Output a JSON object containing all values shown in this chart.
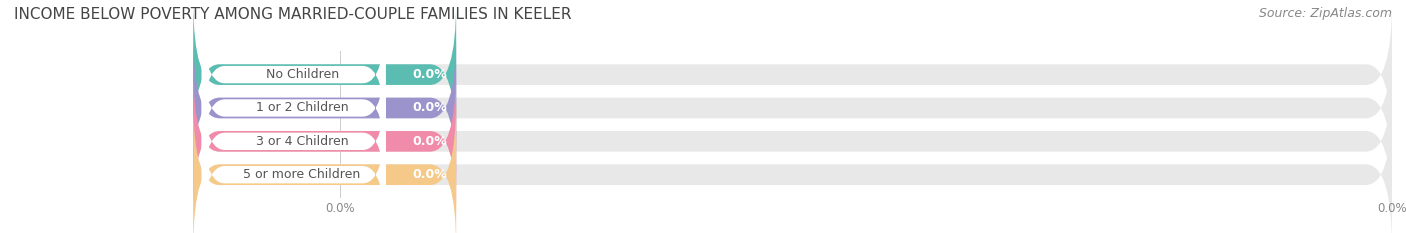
{
  "title": "INCOME BELOW POVERTY AMONG MARRIED-COUPLE FAMILIES IN KEELER",
  "source": "Source: ZipAtlas.com",
  "categories": [
    "No Children",
    "1 or 2 Children",
    "3 or 4 Children",
    "5 or more Children"
  ],
  "values": [
    0.0,
    0.0,
    0.0,
    0.0
  ],
  "bar_colors": [
    "#5bbdb2",
    "#9b93cc",
    "#f08caa",
    "#f5c98a"
  ],
  "bar_bg_color": "#e8e8e8",
  "background_color": "#ffffff",
  "title_fontsize": 11,
  "source_fontsize": 9,
  "label_fontsize": 9,
  "value_fontsize": 9
}
